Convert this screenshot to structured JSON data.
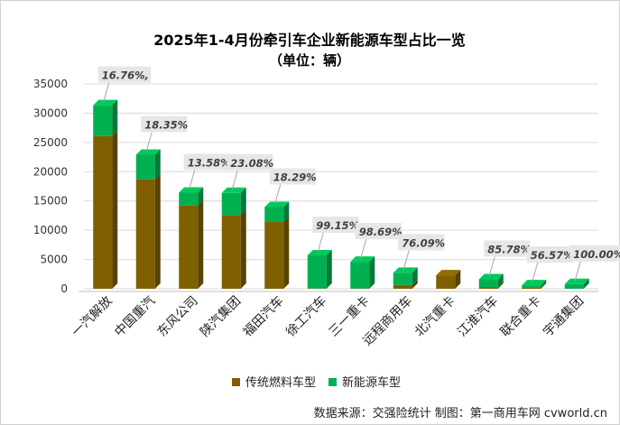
{
  "chart_data": {
    "type": "bar",
    "stacked": true,
    "title": "2025年1-4月份牵引车企业新能源车型占比一览",
    "subtitle": "（单位：辆）",
    "categories": [
      "一汽解放",
      "中国重汽",
      "东风公司",
      "陕汽集团",
      "福田汽车",
      "徐工汽车",
      "三一重卡",
      "远程商用车",
      "北汽重卡",
      "江淮汽车",
      "联合重卡",
      "宇通集团"
    ],
    "series": [
      {
        "name": "传统燃料车型",
        "color": "#7f5f00",
        "values": [
          26100,
          18700,
          14200,
          12600,
          11400,
          50,
          60,
          650,
          2300,
          230,
          260,
          0
        ]
      },
      {
        "name": "新能源车型",
        "color": "#00b050",
        "values": [
          5250,
          4200,
          2230,
          3780,
          2550,
          5650,
          4550,
          2060,
          0,
          1390,
          340,
          800
        ]
      }
    ],
    "data_labels": [
      "16.76%,",
      "18.35%",
      "13.58%",
      "23.08%",
      "18.29%",
      "99.15%",
      "98.69%",
      "76.09%",
      "",
      "85.78%",
      "56.57%",
      "100.00%"
    ],
    "yticks": [
      0,
      5000,
      10000,
      15000,
      20000,
      25000,
      30000,
      35000
    ],
    "ylim": [
      0,
      35000
    ],
    "grid": true,
    "legend_position": "bottom",
    "source_note": "数据来源：交强险统计   制图：第一商用车网 cvworld.cn"
  }
}
